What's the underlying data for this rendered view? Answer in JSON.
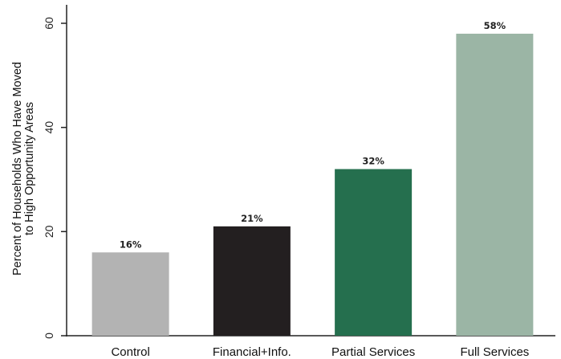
{
  "chart_data": {
    "type": "bar",
    "categories": [
      "Control",
      "Financial+Info.",
      "Partial Services",
      "Full Services"
    ],
    "values": [
      16,
      21,
      32,
      58
    ],
    "data_labels": [
      "16%",
      "21%",
      "32%",
      "58%"
    ],
    "colors": [
      "#b3b3b3",
      "#231f20",
      "#256f4e",
      "#9bb5a5"
    ],
    "title": "",
    "xlabel": "",
    "ylabel": [
      "Percent of Households Who Have Moved",
      "to High Opportunity Areas"
    ],
    "ylim": [
      0,
      62
    ],
    "yticks": [
      0,
      20,
      40,
      60
    ],
    "grid": false,
    "legend": "none"
  }
}
